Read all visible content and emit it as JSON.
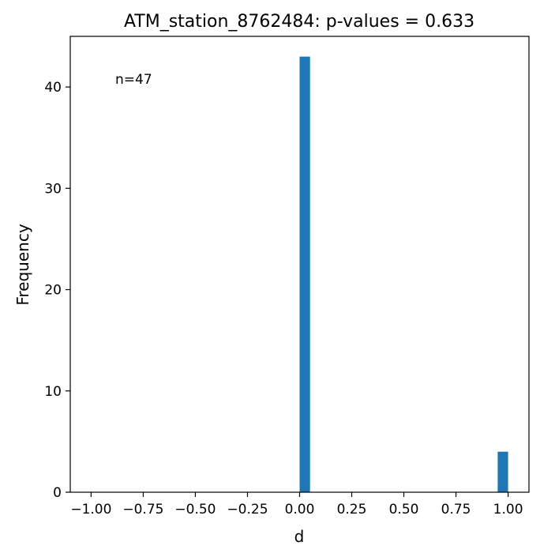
{
  "chart_data": {
    "type": "bar",
    "title": "ATM_station_8762484: p-values = 0.633",
    "xlabel": "d",
    "ylabel": "Frequency",
    "annotation": "n=47",
    "xlim": [
      -1.1,
      1.1
    ],
    "ylim": [
      0,
      45
    ],
    "x_ticks": [
      -1.0,
      -0.75,
      -0.5,
      -0.25,
      0.0,
      0.25,
      0.5,
      0.75,
      1.0
    ],
    "x_tick_labels": [
      "−1.00",
      "−0.75",
      "−0.50",
      "−0.25",
      "0.00",
      "0.25",
      "0.50",
      "0.75",
      "1.00"
    ],
    "y_ticks": [
      0,
      10,
      20,
      30,
      40
    ],
    "y_tick_labels": [
      "0",
      "10",
      "20",
      "30",
      "40"
    ],
    "bins": [
      {
        "start": 0.0,
        "end": 0.05,
        "count": 43
      },
      {
        "start": 0.95,
        "end": 1.0,
        "count": 4
      }
    ],
    "bar_color": "#1f77b4",
    "grid": false
  }
}
